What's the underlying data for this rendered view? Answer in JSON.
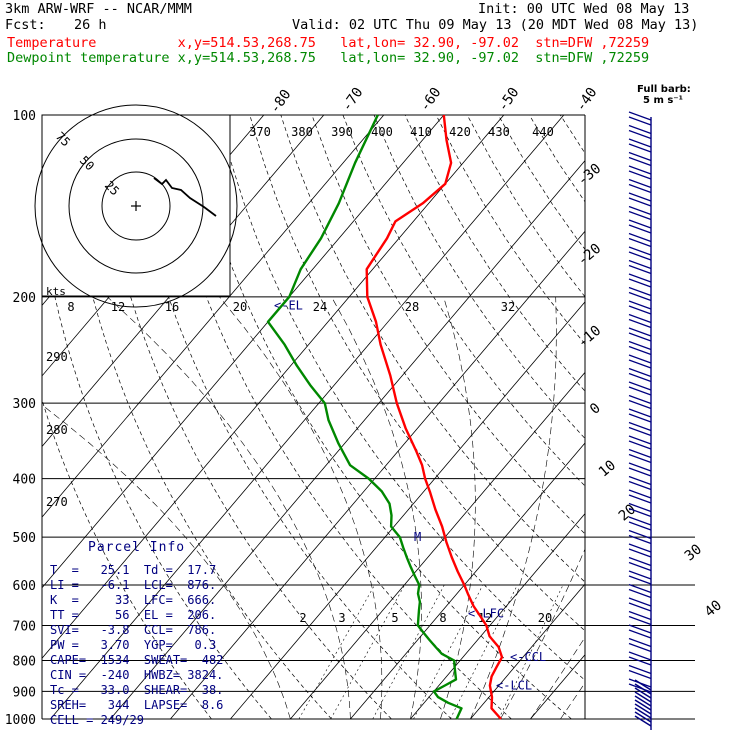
{
  "header": {
    "model": "3km ARW-WRF -- NCAR/MMM",
    "init": "Init: 00 UTC Wed 08 May 13",
    "fcst_label": "Fcst:",
    "fcst_value": "26 h",
    "valid": "Valid: 02 UTC Thu 09 May 13 (20 MDT Wed 08 May 13)",
    "line_temperature": "Temperature          x,y=514.53,268.75   lat,lon= 32.90, -97.02  stn=DFW ,72259",
    "line_dewpoint": "Dewpoint temperature x,y=514.53,268.75   lat,lon= 32.90, -97.02  stn=DFW ,72259"
  },
  "colors": {
    "temperature": "#ff0000",
    "dewpoint": "#008800",
    "text": "#000080",
    "grid": "#000000"
  },
  "barb_legend": {
    "line1": "Full barb:",
    "line2": "5 m s⁻¹"
  },
  "parcel_info": {
    "title": "Parcel Info",
    "rows": [
      "T  =   25.1  Td =  17.7",
      "LI =   -6.1  LCL=  876.",
      "K  =     33  LFC=  666.",
      "TT =     56  EL =  206.",
      "SVI=   -3.8  CCL=  786.",
      "PW =   3.70  YGP=   0.3",
      "CAPE=  1534  SWEAT=  482",
      "CIN =  -240  HWBZ= 3824.",
      "Tc =   33.0  SHEAR=  38.",
      "SREH=   344  LAPSE=  8.6",
      "CELL = 249/29"
    ]
  },
  "chart_data": {
    "type": "line",
    "title": "",
    "xlabel": "",
    "ylabel": "",
    "y_scale": "log",
    "ylim": [
      1000,
      100
    ],
    "pressure_levels": [
      100,
      200,
      300,
      400,
      500,
      600,
      700,
      800,
      900,
      1000
    ],
    "temperature_labels": [
      "-80",
      "-70",
      "-60",
      "-50",
      "-40",
      "-30",
      "-20",
      "-10",
      "0",
      "10",
      "20",
      "30",
      "40"
    ],
    "theta_labels": [
      "370",
      "380",
      "390",
      "400",
      "410",
      "420",
      "430",
      "440"
    ],
    "dry_adiabat_labels": [
      "290",
      "280",
      "270"
    ],
    "mixing_ratio_labels": [
      "2",
      "3",
      "5",
      "8",
      "12",
      "20"
    ],
    "hodograph_speed_labels": [
      "8",
      "12",
      "16",
      "20",
      "24",
      "28",
      "32"
    ],
    "hodograph_unit": "kts",
    "hodograph_ring_labels": [
      "25",
      "50",
      "75"
    ],
    "level_markers": [
      {
        "label": "<-EL",
        "pressure": 206
      },
      {
        "label": "<-LFC",
        "pressure": 666
      },
      {
        "label": "<-CCL",
        "pressure": 786
      },
      {
        "label": "<-LCL",
        "pressure": 876
      },
      {
        "label": "M",
        "pressure": 500
      }
    ],
    "series": [
      {
        "name": "Temperature",
        "pressure": [
          1000,
          960,
          920,
          880,
          850,
          820,
          790,
          760,
          730,
          700,
          680,
          650,
          620,
          600,
          570,
          540,
          510,
          480,
          450,
          420,
          400,
          380,
          360,
          330,
          300,
          270,
          240,
          220,
          200,
          180,
          160,
          150,
          140,
          130,
          120,
          110,
          100
        ],
        "temperature": [
          25.1,
          22,
          20.5,
          18.5,
          17.5,
          17,
          16.5,
          14.5,
          11.5,
          9.4,
          7.5,
          4.5,
          1.8,
          0,
          -3,
          -6,
          -9,
          -12,
          -15.5,
          -19,
          -21.6,
          -24,
          -27,
          -32,
          -37,
          -42,
          -48,
          -52,
          -57,
          -61,
          -62,
          -63,
          -61,
          -60,
          -62,
          -66,
          -70
        ]
      },
      {
        "name": "Dewpoint temperature",
        "pressure": [
          1000,
          960,
          940,
          920,
          900,
          880,
          860,
          840,
          820,
          800,
          780,
          760,
          740,
          720,
          700,
          680,
          660,
          640,
          620,
          600,
          580,
          560,
          540,
          520,
          500,
          480,
          460,
          440,
          420,
          400,
          380,
          350,
          320,
          300,
          280,
          260,
          240,
          220,
          200,
          180,
          160,
          140,
          120,
          100
        ],
        "temperature": [
          17.7,
          17,
          14,
          11.5,
          10,
          11,
          12,
          11,
          10,
          9,
          6,
          4,
          2,
          0,
          -2,
          -3,
          -4,
          -5,
          -6.5,
          -7.5,
          -9.5,
          -11.5,
          -13.5,
          -15.5,
          -17.5,
          -20.5,
          -22,
          -24,
          -27,
          -31,
          -36,
          -41,
          -46,
          -49,
          -54,
          -59,
          -64,
          -70,
          -70,
          -72,
          -73,
          -75,
          -78,
          -81
        ]
      }
    ]
  }
}
